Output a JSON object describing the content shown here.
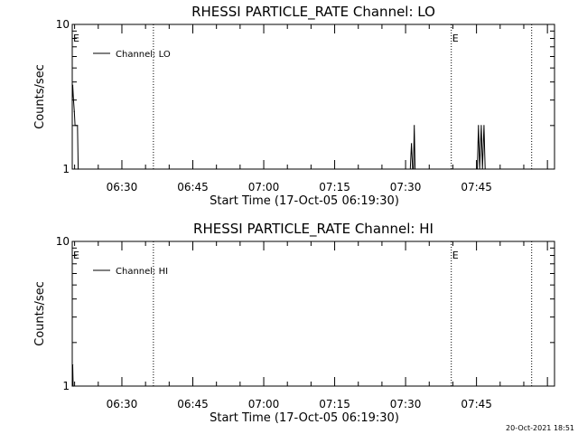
{
  "chart_data": [
    {
      "type": "line",
      "title": "RHESSI PARTICLE_RATE Channel: LO",
      "xlabel": "Start Time (17-Oct-05 06:19:30)",
      "ylabel": "Counts/sec",
      "xlim": [
        "06:19:30",
        "08:01:30"
      ],
      "ylim": [
        1,
        10
      ],
      "y_scale": "log",
      "x_ticks": [
        "06:30",
        "06:45",
        "07:00",
        "07:15",
        "07:30",
        "07:45"
      ],
      "y_ticks": [
        "1",
        "10"
      ],
      "legend": {
        "label": "Channel: LO",
        "position": "top-left"
      },
      "event_lines": [
        "06:36:40",
        "07:39:40",
        "07:56:40"
      ],
      "event_markers": [
        {
          "text": "E",
          "x": "06:19:30"
        },
        {
          "text": "E",
          "x": "07:39:40"
        }
      ],
      "series": [
        {
          "name": "Channel: LO",
          "points": [
            [
              "06:19:30",
              3.0
            ],
            [
              "06:19:36",
              3.8
            ],
            [
              "06:19:46",
              3.0
            ],
            [
              "06:19:56",
              2.5
            ],
            [
              "06:20:06",
              2.0
            ],
            [
              "06:20:36",
              2.0
            ],
            [
              "06:20:46",
              1.0
            ],
            [
              "06:21:00",
              0.9
            ],
            [
              "07:31:40",
              0.9
            ],
            [
              "07:31:50",
              2.0
            ],
            [
              "07:32:00",
              0.9
            ],
            [
              "07:31:00",
              0.9
            ],
            [
              "07:31:15",
              1.5
            ],
            [
              "07:31:30",
              0.9
            ],
            [
              "07:45:10",
              0.9
            ],
            [
              "07:45:25",
              2.0
            ],
            [
              "07:45:40",
              0.9
            ],
            [
              "07:46:00",
              2.0
            ],
            [
              "07:46:15",
              0.9
            ],
            [
              "07:46:35",
              2.0
            ],
            [
              "07:46:50",
              0.9
            ]
          ]
        }
      ]
    },
    {
      "type": "line",
      "title": "RHESSI PARTICLE_RATE Channel: HI",
      "xlabel": "Start Time (17-Oct-05 06:19:30)",
      "ylabel": "Counts/sec",
      "xlim": [
        "06:19:30",
        "08:01:30"
      ],
      "ylim": [
        1,
        10
      ],
      "y_scale": "log",
      "x_ticks": [
        "06:30",
        "06:45",
        "07:00",
        "07:15",
        "07:30",
        "07:45"
      ],
      "y_ticks": [
        "1",
        "10"
      ],
      "legend": {
        "label": "Channel: HI",
        "position": "top-left"
      },
      "event_lines": [
        "06:36:40",
        "07:39:40",
        "07:56:40"
      ],
      "event_markers": [
        {
          "text": "E",
          "x": "06:19:30"
        },
        {
          "text": "E",
          "x": "07:39:40"
        }
      ],
      "series": [
        {
          "name": "Channel: HI",
          "points": [
            [
              "06:19:30",
              1.0
            ],
            [
              "06:19:36",
              1.4
            ],
            [
              "06:19:42",
              1.0
            ],
            [
              "06:19:48",
              0.9
            ]
          ]
        }
      ]
    }
  ],
  "footer": {
    "timestamp": "20-Oct-2021 18:51"
  }
}
